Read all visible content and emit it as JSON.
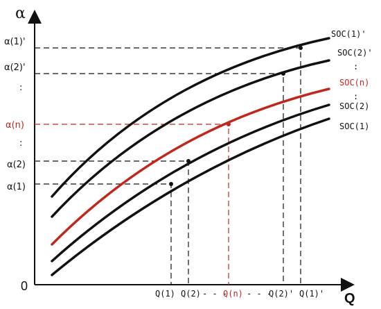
{
  "axes": {
    "y_title": "α",
    "x_title": "Q",
    "origin": "0"
  },
  "y_ticks": [
    {
      "id": "a1p",
      "text": "α(1)'",
      "highlight": false
    },
    {
      "id": "a2p",
      "text": "α(2)'",
      "highlight": false
    },
    {
      "id": "an",
      "text": "α(n)",
      "highlight": true
    },
    {
      "id": "a2",
      "text": "α(2)",
      "highlight": false
    },
    {
      "id": "a1",
      "text": "α(1)",
      "highlight": false
    }
  ],
  "x_ticks": [
    {
      "id": "q1",
      "text": "Q(1)",
      "highlight": false
    },
    {
      "id": "q2",
      "text": "Q(2)",
      "highlight": false
    },
    {
      "id": "qn",
      "text": "Q(n)",
      "highlight": true
    },
    {
      "id": "q2p",
      "text": "Q(2)'",
      "highlight": false
    },
    {
      "id": "q1p",
      "text": "Q(1)'",
      "highlight": false
    }
  ],
  "x_dots_1": "- - -",
  "x_dots_2": "- - -",
  "y_vdots": ":",
  "curves": [
    {
      "id": "soc1p",
      "label": "SOC(1)'",
      "color": "#111111"
    },
    {
      "id": "soc2p",
      "label": "SOC(2)'",
      "color": "#111111"
    },
    {
      "id": "socn",
      "label": "SOC(n)",
      "color": "#c0281e"
    },
    {
      "id": "soc2",
      "label": "SOC(2)",
      "color": "#111111"
    },
    {
      "id": "soc1",
      "label": "SOC(1)",
      "color": "#111111"
    }
  ],
  "colors": {
    "accent_red": "#c0281e",
    "ink": "#111111"
  }
}
